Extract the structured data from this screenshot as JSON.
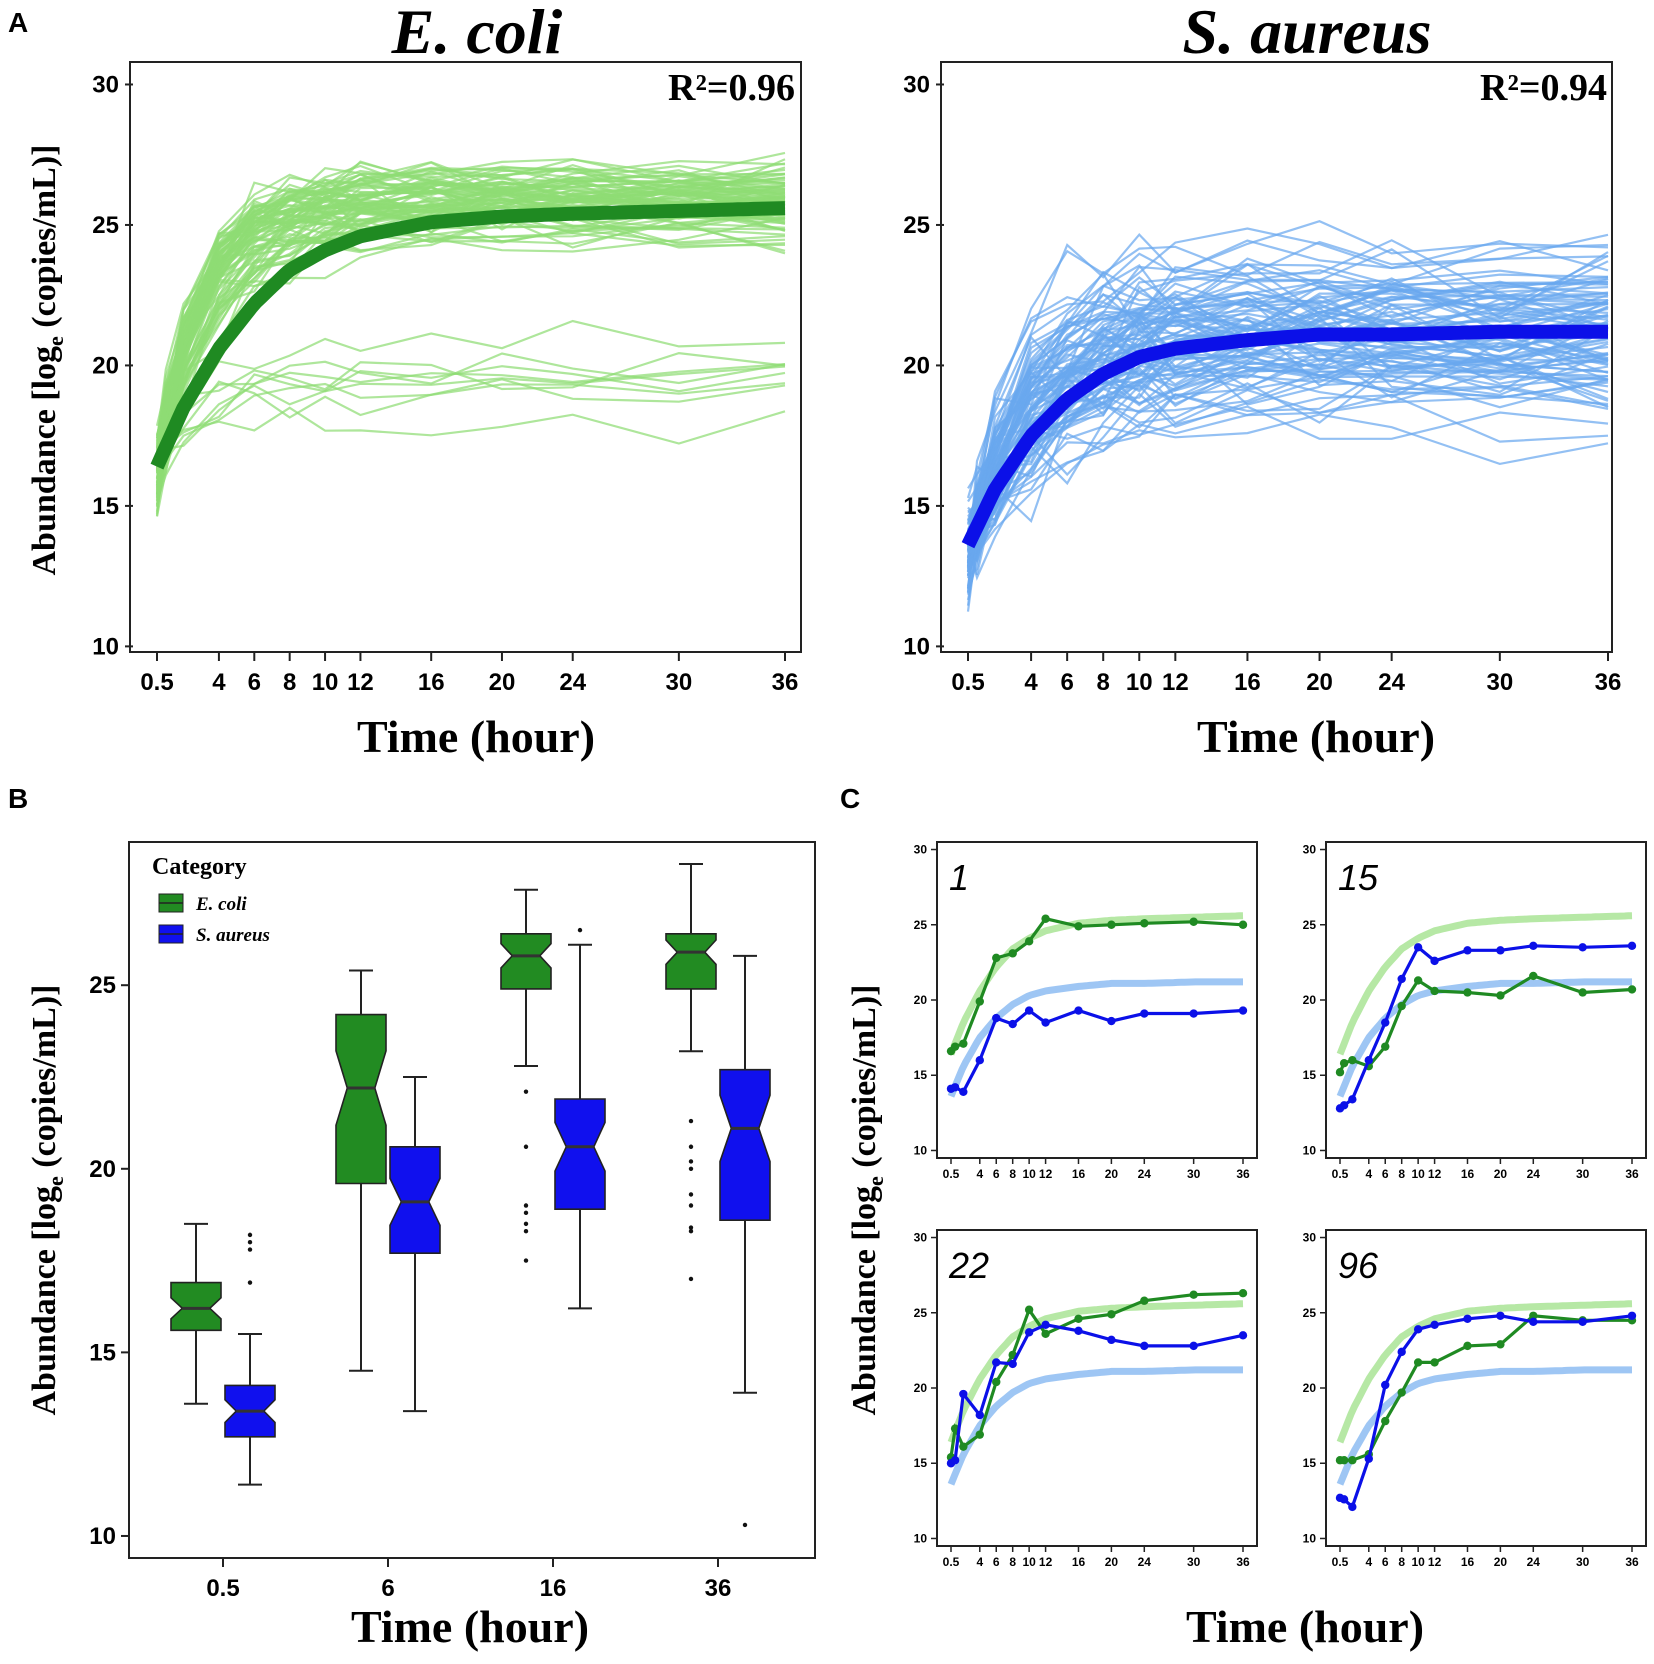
{
  "panels": {
    "A": "A",
    "B": "B",
    "C": "C"
  },
  "colors": {
    "ecoli_main": "#1f8a22",
    "ecoli_light": "#8fdc74",
    "saureus_main": "#0b10e8",
    "saureus_light": "#6aa7ee",
    "box_green": "#228b22",
    "box_blue": "#1010ee"
  },
  "axis_labels": {
    "time": "Time (hour)",
    "abundance_prefix": "Abundance [log",
    "abundance_sub": "e",
    "abundance_suffix": " (copies/mL)]"
  },
  "chart_data": [
    {
      "type": "line",
      "id": "A-ecoli",
      "title": "E. coli",
      "annotation_r2": "R²=0.96",
      "r2_value": 0.96,
      "xlabel": "Time (hour)",
      "ylabel": "Abundance [log_e (copies/mL)]",
      "x_ticks": [
        0.5,
        4,
        6,
        8,
        10,
        12,
        16,
        20,
        24,
        30,
        36
      ],
      "x_tick_labels": [
        "0.5",
        "4",
        "6",
        "8",
        "10",
        "12",
        "16",
        "20",
        "24",
        "30",
        "36"
      ],
      "y_ticks": [
        10,
        15,
        20,
        25,
        30
      ],
      "ylim": [
        9.8,
        30.8
      ],
      "fit": {
        "x": [
          0.5,
          2,
          4,
          6,
          8,
          10,
          12,
          16,
          20,
          24,
          30,
          36
        ],
        "y": [
          16.4,
          18.5,
          20.6,
          22.2,
          23.4,
          24.1,
          24.6,
          25.1,
          25.3,
          25.4,
          25.5,
          25.6
        ]
      },
      "individual_series_count": 96,
      "individual_series_note": "light green individual sample trajectories (about 96 lines), most plateau near 25-27, a subset near 17-21"
    },
    {
      "type": "line",
      "id": "A-saureus",
      "title": "S. aureus",
      "annotation_r2": "R²=0.94",
      "r2_value": 0.94,
      "xlabel": "Time (hour)",
      "ylabel": "",
      "x_ticks": [
        0.5,
        4,
        6,
        8,
        10,
        12,
        16,
        20,
        24,
        30,
        36
      ],
      "x_tick_labels": [
        "0.5",
        "4",
        "6",
        "8",
        "10",
        "12",
        "16",
        "20",
        "24",
        "30",
        "36"
      ],
      "y_ticks": [
        10,
        15,
        20,
        25,
        30
      ],
      "ylim": [
        9.8,
        30.8
      ],
      "fit": {
        "x": [
          0.5,
          2,
          4,
          6,
          8,
          10,
          12,
          16,
          20,
          24,
          30,
          36
        ],
        "y": [
          13.6,
          15.6,
          17.5,
          18.8,
          19.7,
          20.3,
          20.6,
          20.9,
          21.1,
          21.1,
          21.2,
          21.2
        ]
      },
      "individual_series_count": 96,
      "individual_series_note": "light blue individual sample trajectories, spread widely between about 14 and 26 after 12 h"
    },
    {
      "type": "boxplot",
      "id": "B",
      "xlabel": "Time (hour)",
      "ylabel": "Abundance [log_e (copies/mL)]",
      "categories": [
        "0.5",
        "6",
        "16",
        "36"
      ],
      "y_ticks": [
        10,
        15,
        20,
        25
      ],
      "ylim": [
        9.4,
        28.9
      ],
      "legend": {
        "title": "Category",
        "entries": [
          "E. coli",
          "S. aureus"
        ],
        "position": "top-left"
      },
      "series": [
        {
          "name": "E. coli",
          "boxes": [
            {
              "min": 13.6,
              "q1": 15.6,
              "median": 16.2,
              "q3": 16.9,
              "max": 18.5,
              "outliers": []
            },
            {
              "min": 14.5,
              "q1": 19.6,
              "median": 22.2,
              "q3": 24.2,
              "max": 25.4,
              "outliers": []
            },
            {
              "min": 22.8,
              "q1": 24.9,
              "median": 25.8,
              "q3": 26.4,
              "max": 27.6,
              "outliers": [
                22.1,
                20.6,
                19.0,
                18.8,
                18.5,
                18.3,
                17.5
              ]
            },
            {
              "min": 23.2,
              "q1": 24.9,
              "median": 25.9,
              "q3": 26.4,
              "max": 28.3,
              "outliers": [
                21.3,
                20.6,
                20.2,
                20.0,
                19.3,
                19.0,
                18.4,
                18.3,
                17.0
              ]
            }
          ]
        },
        {
          "name": "S. aureus",
          "boxes": [
            {
              "min": 11.4,
              "q1": 12.7,
              "median": 13.4,
              "q3": 14.1,
              "max": 15.5,
              "outliers": [
                18.2,
                18.0,
                17.8,
                16.9
              ]
            },
            {
              "min": 13.4,
              "q1": 17.7,
              "median": 19.1,
              "q3": 20.6,
              "max": 22.5,
              "outliers": []
            },
            {
              "min": 16.2,
              "q1": 18.9,
              "median": 20.6,
              "q3": 21.9,
              "max": 26.1,
              "outliers": [
                26.5
              ]
            },
            {
              "min": 13.9,
              "q1": 18.6,
              "median": 21.1,
              "q3": 22.7,
              "max": 25.8,
              "outliers": [
                10.3
              ]
            }
          ]
        }
      ]
    },
    {
      "type": "line",
      "id": "C",
      "xlabel": "Time (hour)",
      "ylabel": "Abundance [log_e (copies/mL)]",
      "x": [
        0.5,
        1,
        2,
        4,
        6,
        8,
        10,
        12,
        16,
        20,
        24,
        30,
        36
      ],
      "x_ticks": [
        0.5,
        4,
        6,
        8,
        10,
        12,
        16,
        20,
        24,
        30,
        36
      ],
      "x_tick_labels": [
        "0.5",
        "4",
        "6",
        "8",
        "10",
        "12",
        "16",
        "20",
        "24",
        "30",
        "36"
      ],
      "y_ticks": [
        10,
        15,
        20,
        25,
        30
      ],
      "ylim": [
        9.5,
        30.5
      ],
      "reference_fits": [
        "E. coli fit (panel A)",
        "S. aureus fit (panel A)"
      ],
      "facets": [
        {
          "label": "1",
          "series": [
            {
              "name": "E. coli",
              "values": [
                16.6,
                16.9,
                17.1,
                19.9,
                22.8,
                23.1,
                23.9,
                25.4,
                24.9,
                25.0,
                25.1,
                25.2,
                25.0
              ]
            },
            {
              "name": "S. aureus",
              "values": [
                14.1,
                14.2,
                13.9,
                16.0,
                18.8,
                18.4,
                19.3,
                18.5,
                19.3,
                18.6,
                19.1,
                19.1,
                19.3
              ]
            }
          ]
        },
        {
          "label": "15",
          "series": [
            {
              "name": "E. coli",
              "values": [
                15.2,
                15.8,
                16.0,
                15.6,
                16.9,
                19.6,
                21.3,
                20.6,
                20.5,
                20.3,
                21.6,
                20.5,
                20.7
              ]
            },
            {
              "name": "S. aureus",
              "values": [
                12.8,
                13.0,
                13.4,
                16.0,
                18.5,
                21.4,
                23.5,
                22.6,
                23.3,
                23.3,
                23.6,
                23.5,
                23.6
              ]
            }
          ]
        },
        {
          "label": "22",
          "series": [
            {
              "name": "E. coli",
              "values": [
                15.4,
                17.3,
                16.1,
                16.9,
                20.4,
                22.2,
                25.2,
                23.6,
                24.6,
                24.9,
                25.8,
                26.2,
                26.3
              ]
            },
            {
              "name": "S. aureus",
              "values": [
                15.0,
                15.2,
                19.6,
                18.2,
                21.7,
                21.6,
                23.7,
                24.2,
                23.8,
                23.2,
                22.8,
                22.8,
                23.5
              ]
            }
          ]
        },
        {
          "label": "96",
          "series": [
            {
              "name": "E. coli",
              "values": [
                15.2,
                15.2,
                15.2,
                15.6,
                17.8,
                19.7,
                21.7,
                21.7,
                22.8,
                22.9,
                24.8,
                24.5,
                24.5
              ]
            },
            {
              "name": "S. aureus",
              "values": [
                12.7,
                12.6,
                12.1,
                15.3,
                20.2,
                22.4,
                23.9,
                24.2,
                24.6,
                24.8,
                24.4,
                24.4,
                24.8
              ]
            }
          ]
        }
      ]
    }
  ]
}
